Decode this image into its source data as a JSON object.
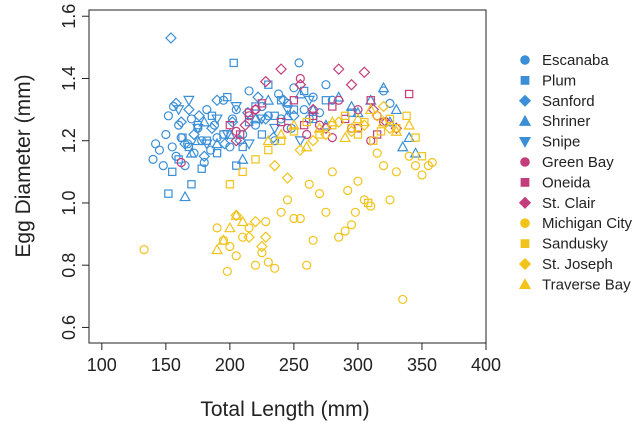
{
  "chart_data": {
    "type": "scatter",
    "xlabel": "Total Length (mm)",
    "ylabel": "Egg Diameter (mm)",
    "xlim": [
      90,
      400
    ],
    "ylim": [
      0.55,
      1.62
    ],
    "xticks": [
      "100",
      "150",
      "200",
      "250",
      "300",
      "350",
      "400"
    ],
    "xtick_values": [
      100,
      150,
      200,
      250,
      300,
      350,
      400
    ],
    "yticks": [
      "0.6",
      "0.8",
      "1.0",
      "1.2",
      "1.4",
      "1.6"
    ],
    "ytick_values": [
      0.6,
      0.8,
      1.0,
      1.2,
      1.4,
      1.6
    ],
    "legend_position": "right",
    "series": [
      {
        "name": "Escanaba",
        "color": "#3a8fd6",
        "marker": "circle",
        "points": [
          [
            140,
            1.14
          ],
          [
            142,
            1.19
          ],
          [
            145,
            1.17
          ],
          [
            148,
            1.12
          ],
          [
            150,
            1.22
          ],
          [
            152,
            1.28
          ],
          [
            155,
            1.18
          ],
          [
            156,
            1.31
          ],
          [
            158,
            1.15
          ],
          [
            160,
            1.25
          ],
          [
            162,
            1.21
          ],
          [
            165,
            1.12
          ],
          [
            167,
            1.19
          ],
          [
            170,
            1.27
          ],
          [
            172,
            1.16
          ],
          [
            175,
            1.24
          ],
          [
            178,
            1.2
          ],
          [
            180,
            1.13
          ],
          [
            182,
            1.3
          ],
          [
            185,
            1.17
          ],
          [
            188,
            1.25
          ],
          [
            190,
            1.21
          ],
          [
            195,
            1.33
          ],
          [
            200,
            1.18
          ],
          [
            202,
            1.27
          ],
          [
            205,
            1.3
          ],
          [
            210,
            1.22
          ],
          [
            215,
            1.36
          ],
          [
            220,
            1.25
          ],
          [
            225,
            1.31
          ],
          [
            230,
            1.28
          ],
          [
            235,
            1.2
          ],
          [
            238,
            1.35
          ],
          [
            240,
            1.27
          ],
          [
            245,
            1.32
          ],
          [
            248,
            1.24
          ],
          [
            250,
            1.37
          ],
          [
            254,
            1.45
          ],
          [
            258,
            1.3
          ],
          [
            262,
            1.27
          ],
          [
            265,
            1.34
          ],
          [
            270,
            1.29
          ],
          [
            275,
            1.38
          ],
          [
            280,
            1.33
          ],
          [
            320,
            1.36
          ],
          [
            325,
            1.32
          ]
        ]
      },
      {
        "name": "Plum",
        "color": "#3a8fd6",
        "marker": "square",
        "points": [
          [
            152,
            1.03
          ],
          [
            155,
            1.1
          ],
          [
            160,
            1.14
          ],
          [
            163,
            1.21
          ],
          [
            168,
            1.18
          ],
          [
            170,
            1.06
          ],
          [
            175,
            1.25
          ],
          [
            178,
            1.11
          ],
          [
            182,
            1.2
          ],
          [
            186,
            1.28
          ],
          [
            190,
            1.16
          ],
          [
            195,
            1.22
          ],
          [
            198,
            1.34
          ],
          [
            203,
            1.45
          ],
          [
            205,
            1.12
          ],
          [
            210,
            1.18
          ],
          [
            215,
            1.26
          ],
          [
            220,
            1.31
          ],
          [
            225,
            1.22
          ],
          [
            230,
            1.38
          ],
          [
            235,
            1.28
          ],
          [
            240,
            1.33
          ],
          [
            250,
            1.3
          ],
          [
            258,
            1.36
          ],
          [
            265,
            1.27
          ],
          [
            275,
            1.33
          ],
          [
            295,
            1.29
          ]
        ]
      },
      {
        "name": "Sanford",
        "color": "#3a8fd6",
        "marker": "diamond",
        "points": [
          [
            154,
            1.53
          ],
          [
            158,
            1.32
          ],
          [
            162,
            1.26
          ],
          [
            165,
            1.19
          ],
          [
            168,
            1.3
          ],
          [
            172,
            1.22
          ],
          [
            176,
            1.28
          ],
          [
            180,
            1.15
          ],
          [
            186,
            1.24
          ],
          [
            190,
            1.33
          ],
          [
            196,
            1.19
          ],
          [
            202,
            1.26
          ],
          [
            208,
            1.2
          ],
          [
            214,
            1.29
          ],
          [
            222,
            1.34
          ],
          [
            228,
            1.27
          ],
          [
            234,
            1.21
          ],
          [
            242,
            1.33
          ],
          [
            250,
            1.28
          ]
        ]
      },
      {
        "name": "Shriner",
        "color": "#3a8fd6",
        "marker": "triangle-up",
        "points": [
          [
            165,
            1.02
          ],
          [
            170,
            1.16
          ],
          [
            175,
            1.2
          ],
          [
            180,
            1.26
          ],
          [
            190,
            1.19
          ],
          [
            200,
            1.22
          ],
          [
            210,
            1.14
          ],
          [
            220,
            1.27
          ],
          [
            230,
            1.33
          ],
          [
            245,
            1.28
          ],
          [
            255,
            1.35
          ],
          [
            265,
            1.3
          ],
          [
            275,
            1.25
          ],
          [
            285,
            1.34
          ],
          [
            295,
            1.31
          ],
          [
            300,
            1.29
          ],
          [
            310,
            1.33
          ],
          [
            320,
            1.37
          ],
          [
            325,
            1.26
          ],
          [
            330,
            1.3
          ],
          [
            335,
            1.18
          ],
          [
            340,
            1.21
          ],
          [
            345,
            1.16
          ]
        ]
      },
      {
        "name": "Snipe",
        "color": "#3a8fd6",
        "marker": "triangle-down",
        "points": [
          [
            160,
            1.3
          ],
          [
            168,
            1.33
          ],
          [
            175,
            1.24
          ],
          [
            182,
            1.19
          ],
          [
            190,
            1.27
          ],
          [
            198,
            1.22
          ],
          [
            205,
            1.31
          ],
          [
            215,
            1.19
          ],
          [
            225,
            1.27
          ],
          [
            235,
            1.24
          ],
          [
            245,
            1.3
          ],
          [
            255,
            1.2
          ],
          [
            262,
            1.33
          ]
        ]
      },
      {
        "name": "Green Bay",
        "color": "#c33d7c",
        "marker": "circle",
        "points": [
          [
            162,
            1.13
          ],
          [
            205,
            1.23
          ],
          [
            215,
            1.28
          ],
          [
            220,
            1.3
          ],
          [
            245,
            1.24
          ],
          [
            255,
            1.4
          ],
          [
            260,
            1.22
          ],
          [
            270,
            1.25
          ],
          [
            280,
            1.21
          ],
          [
            285,
            1.33
          ],
          [
            295,
            1.24
          ],
          [
            300,
            1.3
          ],
          [
            310,
            1.2
          ],
          [
            315,
            1.28
          ],
          [
            320,
            1.26
          ]
        ]
      },
      {
        "name": "Oneida",
        "color": "#c33d7c",
        "marker": "square",
        "points": [
          [
            200,
            1.25
          ],
          [
            208,
            1.22
          ],
          [
            215,
            1.29
          ],
          [
            225,
            1.32
          ],
          [
            240,
            1.26
          ],
          [
            250,
            1.33
          ],
          [
            258,
            1.25
          ],
          [
            265,
            1.28
          ],
          [
            280,
            1.31
          ],
          [
            290,
            1.27
          ],
          [
            300,
            1.24
          ],
          [
            310,
            1.33
          ],
          [
            315,
            1.22
          ],
          [
            340,
            1.35
          ]
        ]
      },
      {
        "name": "St. Clair",
        "color": "#c33d7c",
        "marker": "diamond",
        "points": [
          [
            205,
            1.2
          ],
          [
            212,
            1.25
          ],
          [
            220,
            1.3
          ],
          [
            228,
            1.39
          ],
          [
            240,
            1.43
          ],
          [
            255,
            1.38
          ],
          [
            265,
            1.3
          ],
          [
            275,
            1.24
          ],
          [
            285,
            1.43
          ],
          [
            295,
            1.38
          ],
          [
            305,
            1.42
          ],
          [
            312,
            1.3
          ],
          [
            322,
            1.26
          ],
          [
            330,
            1.24
          ]
        ]
      },
      {
        "name": "Michigan City",
        "color": "#f2c31b",
        "marker": "circle",
        "points": [
          [
            133,
            0.85
          ],
          [
            190,
            0.92
          ],
          [
            195,
            0.88
          ],
          [
            198,
            0.78
          ],
          [
            200,
            0.86
          ],
          [
            205,
            0.83
          ],
          [
            210,
            0.89
          ],
          [
            215,
            0.92
          ],
          [
            220,
            0.8
          ],
          [
            225,
            0.84
          ],
          [
            228,
            0.94
          ],
          [
            230,
            0.81
          ],
          [
            235,
            0.79
          ],
          [
            240,
            0.97
          ],
          [
            245,
            1.01
          ],
          [
            250,
            0.95
          ],
          [
            255,
            0.95
          ],
          [
            260,
            0.8
          ],
          [
            262,
            1.06
          ],
          [
            265,
            0.88
          ],
          [
            270,
            1.03
          ],
          [
            275,
            0.97
          ],
          [
            280,
            1.1
          ],
          [
            285,
            0.89
          ],
          [
            290,
            0.91
          ],
          [
            292,
            1.04
          ],
          [
            295,
            0.93
          ],
          [
            298,
            0.97
          ],
          [
            300,
            1.07
          ],
          [
            305,
            1.01
          ],
          [
            310,
            0.99
          ],
          [
            315,
            1.16
          ],
          [
            320,
            1.12
          ],
          [
            325,
            1.01
          ],
          [
            330,
            1.1
          ],
          [
            335,
            0.69
          ],
          [
            340,
            1.15
          ],
          [
            345,
            1.12
          ],
          [
            350,
            1.09
          ],
          [
            355,
            1.12
          ],
          [
            358,
            1.13
          ]
        ]
      },
      {
        "name": "Sandusky",
        "color": "#f2c31b",
        "marker": "square",
        "points": [
          [
            200,
            1.06
          ],
          [
            210,
            1.1
          ],
          [
            220,
            1.14
          ],
          [
            230,
            1.17
          ],
          [
            240,
            1.2
          ],
          [
            250,
            1.23
          ],
          [
            260,
            1.26
          ],
          [
            270,
            1.22
          ],
          [
            280,
            1.25
          ],
          [
            290,
            1.28
          ],
          [
            295,
            1.24
          ],
          [
            300,
            1.22
          ],
          [
            305,
            1.26
          ],
          [
            308,
            1.0
          ],
          [
            312,
            1.2
          ],
          [
            318,
            1.23
          ],
          [
            325,
            1.27
          ],
          [
            330,
            1.24
          ],
          [
            338,
            1.28
          ],
          [
            345,
            1.21
          ],
          [
            350,
            1.15
          ]
        ]
      },
      {
        "name": "St. Joseph",
        "color": "#f2c31b",
        "marker": "diamond",
        "points": [
          [
            205,
            0.96
          ],
          [
            215,
            0.89
          ],
          [
            220,
            0.94
          ],
          [
            225,
            0.86
          ],
          [
            228,
            0.89
          ],
          [
            235,
            1.12
          ],
          [
            245,
            1.08
          ],
          [
            255,
            1.17
          ],
          [
            265,
            1.2
          ],
          [
            275,
            1.22
          ],
          [
            285,
            1.26
          ],
          [
            295,
            1.23
          ],
          [
            305,
            1.25
          ],
          [
            315,
            1.28
          ],
          [
            320,
            1.31
          ],
          [
            325,
            1.24
          ]
        ]
      },
      {
        "name": "Traverse Bay",
        "color": "#f2c31b",
        "marker": "triangle-up",
        "points": [
          [
            190,
            0.85
          ],
          [
            195,
            0.88
          ],
          [
            200,
            0.92
          ],
          [
            205,
            0.96
          ],
          [
            210,
            0.94
          ],
          [
            230,
            1.2
          ],
          [
            240,
            1.22
          ],
          [
            250,
            1.25
          ],
          [
            260,
            1.18
          ],
          [
            270,
            1.24
          ],
          [
            280,
            1.26
          ],
          [
            290,
            1.21
          ],
          [
            300,
            1.27
          ],
          [
            310,
            1.3
          ],
          [
            320,
            1.26
          ],
          [
            330,
            1.23
          ],
          [
            340,
            1.25
          ]
        ]
      }
    ]
  }
}
